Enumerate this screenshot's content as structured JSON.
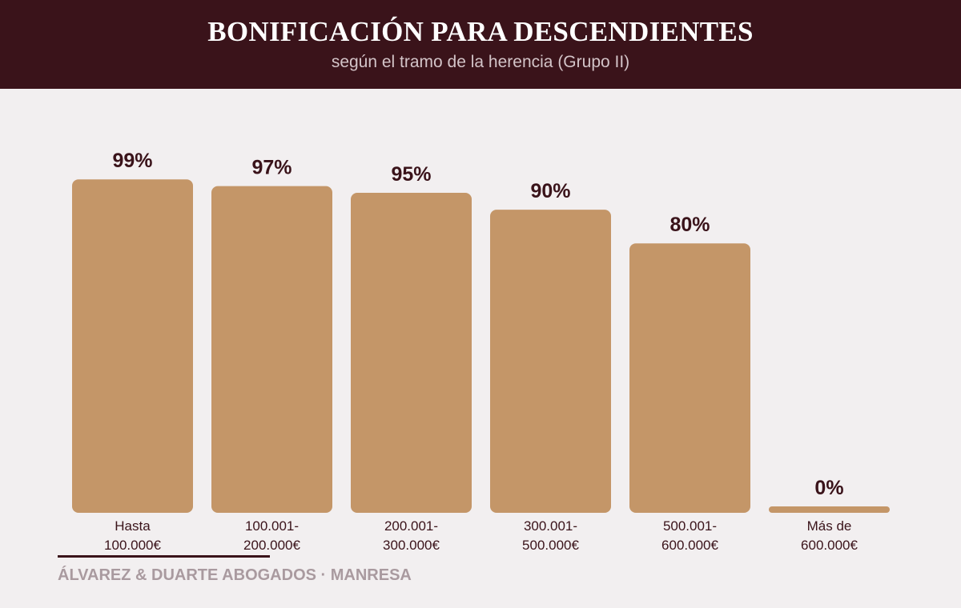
{
  "header": {
    "title": "BONIFICACIÓN PARA DESCENDIENTES",
    "subtitle": "según el tramo de la herencia (Grupo II)"
  },
  "footer": {
    "text": "ÁLVAREZ & DUARTE ABOGADOS · MANRESA"
  },
  "colors": {
    "header_bg": "#3a131a",
    "bar": "#c49668",
    "value_label": "#3a131a",
    "category_label": "#3a131a",
    "page_bg": "#f2eff0"
  },
  "chart_data": {
    "type": "bar",
    "categories": [
      [
        "Hasta",
        "100.000€"
      ],
      [
        "100.001-",
        "200.000€"
      ],
      [
        "200.001-",
        "300.000€"
      ],
      [
        "300.001-",
        "500.000€"
      ],
      [
        "500.001-",
        "600.000€"
      ],
      [
        "Más de",
        "600.000€"
      ]
    ],
    "values": [
      99,
      97,
      95,
      90,
      80,
      0
    ],
    "value_labels": [
      "99%",
      "97%",
      "95%",
      "90%",
      "80%",
      "0%"
    ],
    "ylim": [
      0,
      100
    ],
    "grid": false,
    "legend": "none"
  }
}
